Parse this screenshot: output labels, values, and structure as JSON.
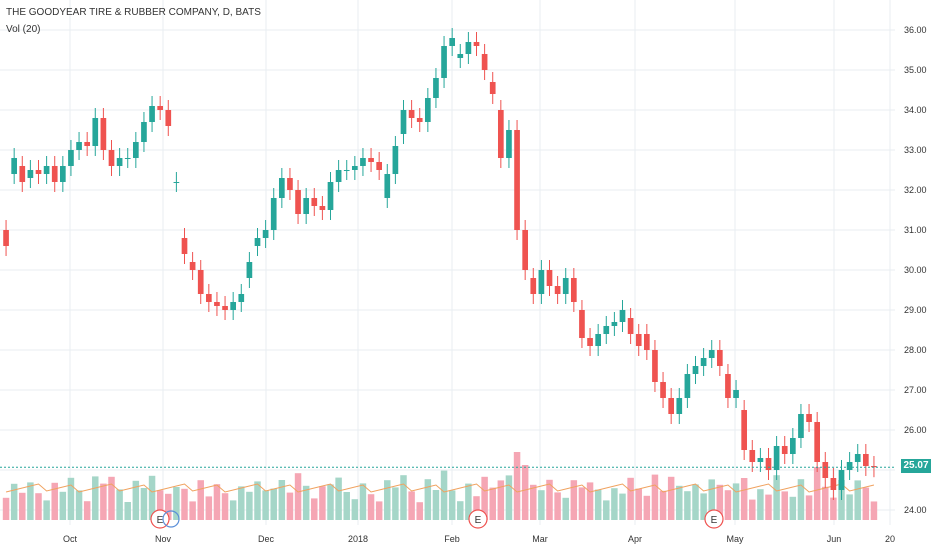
{
  "chart_data": {
    "title": "THE GOODYEAR TIRE & RUBBER COMPANY, D, BATS",
    "type": "candlestick",
    "volume_label": "Vol (20)",
    "last_price": "25.07",
    "y_axis": {
      "ticks": [
        "24.00",
        "25.00",
        "26.00",
        "27.00",
        "28.00",
        "29.00",
        "30.00",
        "31.00",
        "32.00",
        "33.00",
        "34.00",
        "35.00",
        "36.00"
      ],
      "range": [
        23.5,
        36.3
      ]
    },
    "x_axis": {
      "ticks": [
        "Oct",
        "Nov",
        "Dec",
        "2018",
        "Feb",
        "Mar",
        "Apr",
        "May",
        "Jun",
        "20"
      ]
    },
    "earnings_markers": [
      "E",
      "E",
      "E"
    ],
    "colors": {
      "up": "#26a69a",
      "down": "#ef5350",
      "up_volume": "#a5d6c8",
      "down_volume": "#f5a6b4",
      "volume_ma": "#f0a25f",
      "grid": "#e9edf2",
      "price_line": "#26a69a"
    },
    "series": [
      {
        "name": "price",
        "points": [
          [
            31.0,
            30.6
          ],
          [
            32.4,
            32.8
          ],
          [
            32.6,
            32.2
          ],
          [
            32.3,
            32.5
          ],
          [
            32.5,
            32.4
          ],
          [
            32.4,
            32.6
          ],
          [
            32.6,
            32.2
          ],
          [
            32.2,
            32.6
          ],
          [
            32.6,
            33.0
          ],
          [
            33.0,
            33.2
          ],
          [
            33.2,
            33.1
          ],
          [
            33.1,
            33.8
          ],
          [
            33.8,
            33.0
          ],
          [
            33.0,
            32.6
          ],
          [
            32.6,
            32.8
          ],
          [
            32.8,
            32.8
          ],
          [
            32.8,
            33.2
          ],
          [
            33.2,
            33.7
          ],
          [
            33.7,
            34.1
          ],
          [
            34.1,
            34.0
          ],
          [
            34.0,
            33.6
          ],
          [
            32.2,
            32.2
          ],
          [
            30.8,
            30.4
          ],
          [
            30.2,
            30.0
          ],
          [
            30.0,
            29.4
          ],
          [
            29.4,
            29.2
          ],
          [
            29.2,
            29.1
          ],
          [
            29.1,
            29.0
          ],
          [
            29.0,
            29.2
          ],
          [
            29.2,
            29.4
          ],
          [
            29.8,
            30.2
          ],
          [
            30.6,
            30.8
          ],
          [
            30.8,
            31.0
          ],
          [
            31.0,
            31.8
          ],
          [
            31.8,
            32.3
          ],
          [
            32.3,
            32.0
          ],
          [
            32.0,
            31.4
          ],
          [
            31.4,
            31.8
          ],
          [
            31.8,
            31.6
          ],
          [
            31.6,
            31.5
          ],
          [
            31.5,
            32.2
          ],
          [
            32.2,
            32.5
          ],
          [
            32.5,
            32.5
          ],
          [
            32.5,
            32.6
          ],
          [
            32.6,
            32.8
          ],
          [
            32.8,
            32.7
          ],
          [
            32.7,
            32.5
          ],
          [
            31.8,
            32.4
          ],
          [
            32.4,
            33.1
          ],
          [
            33.4,
            34.0
          ],
          [
            34.0,
            33.8
          ],
          [
            33.8,
            33.7
          ],
          [
            33.7,
            34.3
          ],
          [
            34.3,
            34.8
          ],
          [
            34.8,
            35.6
          ],
          [
            35.6,
            35.8
          ],
          [
            35.3,
            35.4
          ],
          [
            35.4,
            35.7
          ],
          [
            35.7,
            35.6
          ],
          [
            35.4,
            35.0
          ],
          [
            34.7,
            34.4
          ],
          [
            34.0,
            32.8
          ],
          [
            32.8,
            33.5
          ],
          [
            33.5,
            31.0
          ],
          [
            31.0,
            30.0
          ],
          [
            29.8,
            29.4
          ],
          [
            29.4,
            30.0
          ],
          [
            30.0,
            29.6
          ],
          [
            29.6,
            29.4
          ],
          [
            29.4,
            29.8
          ],
          [
            29.8,
            29.2
          ],
          [
            29.0,
            28.3
          ],
          [
            28.3,
            28.1
          ],
          [
            28.1,
            28.4
          ],
          [
            28.4,
            28.6
          ],
          [
            28.6,
            28.7
          ],
          [
            28.7,
            29.0
          ],
          [
            28.8,
            28.4
          ],
          [
            28.4,
            28.1
          ],
          [
            28.4,
            28.0
          ],
          [
            28.0,
            27.2
          ],
          [
            27.2,
            26.8
          ],
          [
            26.8,
            26.4
          ],
          [
            26.4,
            26.8
          ],
          [
            26.8,
            27.4
          ],
          [
            27.4,
            27.6
          ],
          [
            27.6,
            27.8
          ],
          [
            27.8,
            28.0
          ],
          [
            28.0,
            27.6
          ],
          [
            27.4,
            26.8
          ],
          [
            26.8,
            27.0
          ],
          [
            26.5,
            25.5
          ],
          [
            25.5,
            25.2
          ],
          [
            25.2,
            25.3
          ],
          [
            25.3,
            25.0
          ],
          [
            25.0,
            25.6
          ],
          [
            25.6,
            25.4
          ],
          [
            25.4,
            25.8
          ],
          [
            25.8,
            26.4
          ],
          [
            26.4,
            26.2
          ],
          [
            26.2,
            25.2
          ],
          [
            25.2,
            24.8
          ],
          [
            24.8,
            24.5
          ],
          [
            24.5,
            25.0
          ],
          [
            25.0,
            25.2
          ],
          [
            25.2,
            25.4
          ],
          [
            25.4,
            25.1
          ],
          [
            25.1,
            25.07
          ]
        ]
      }
    ]
  }
}
